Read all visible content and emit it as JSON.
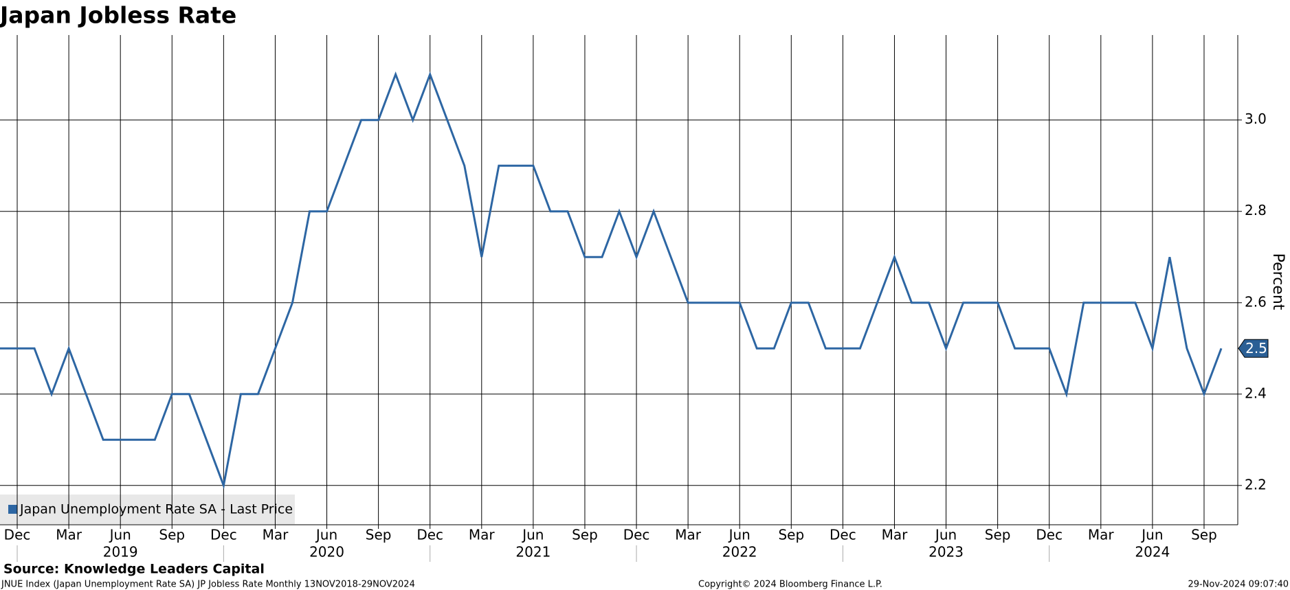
{
  "chart_data": {
    "type": "line",
    "title": "Japan Jobless Rate",
    "y_axis_label": "Percent",
    "series_name": "Japan Unemployment Rate SA - Last Price",
    "color": "#2d66a3",
    "categories": [
      null,
      "Dec",
      null,
      null,
      "Mar",
      null,
      null,
      "Jun",
      null,
      null,
      "Sep",
      null,
      null,
      "Dec",
      null,
      null,
      "Mar",
      null,
      null,
      "Jun",
      null,
      null,
      "Sep",
      null,
      null,
      "Dec",
      null,
      null,
      "Mar",
      null,
      null,
      "Jun",
      null,
      null,
      "Sep",
      null,
      null,
      "Dec",
      null,
      null,
      "Mar",
      null,
      null,
      "Jun",
      null,
      null,
      "Sep",
      null,
      null,
      "Dec",
      null,
      null,
      "Mar",
      null,
      null,
      "Jun",
      null,
      null,
      "Sep",
      null,
      null,
      "Dec",
      null,
      null,
      "Mar",
      null,
      null,
      "Jun",
      null,
      null,
      "Sep",
      null
    ],
    "year_labels": [
      "2019",
      "2020",
      "2021",
      "2022",
      "2023",
      "2024"
    ],
    "values": [
      2.5,
      2.5,
      2.5,
      2.4,
      2.5,
      2.4,
      2.3,
      2.3,
      2.3,
      2.3,
      2.4,
      2.4,
      2.3,
      2.2,
      2.4,
      2.4,
      2.5,
      2.6,
      2.8,
      2.8,
      2.9,
      3.0,
      3.0,
      3.1,
      3.0,
      3.1,
      3.0,
      2.9,
      2.7,
      2.9,
      2.9,
      2.9,
      2.8,
      2.8,
      2.7,
      2.7,
      2.8,
      2.7,
      2.8,
      2.7,
      2.6,
      2.6,
      2.6,
      2.6,
      2.5,
      2.5,
      2.6,
      2.6,
      2.5,
      2.5,
      2.5,
      2.6,
      2.7,
      2.6,
      2.6,
      2.5,
      2.6,
      2.6,
      2.6,
      2.5,
      2.5,
      2.5,
      2.4,
      2.6,
      2.6,
      2.6,
      2.6,
      2.5,
      2.7,
      2.5,
      2.4,
      2.5
    ],
    "ylim": [
      2.114,
      3.186
    ],
    "yticks": [
      2.2,
      2.4,
      2.6,
      2.8,
      {
        "value": 3,
        "label": "3.0"
      }
    ],
    "grid": true
  },
  "source": "Source: Knowledge Leaders Capital",
  "footer": {
    "left": "JNUE Index (Japan Unemployment Rate SA) JP Jobless Rate  Monthly 13NOV2018-29NOV2024",
    "center": "Copyright© 2024 Bloomberg Finance L.P.",
    "right": "29-Nov-2024 09:07:40"
  }
}
